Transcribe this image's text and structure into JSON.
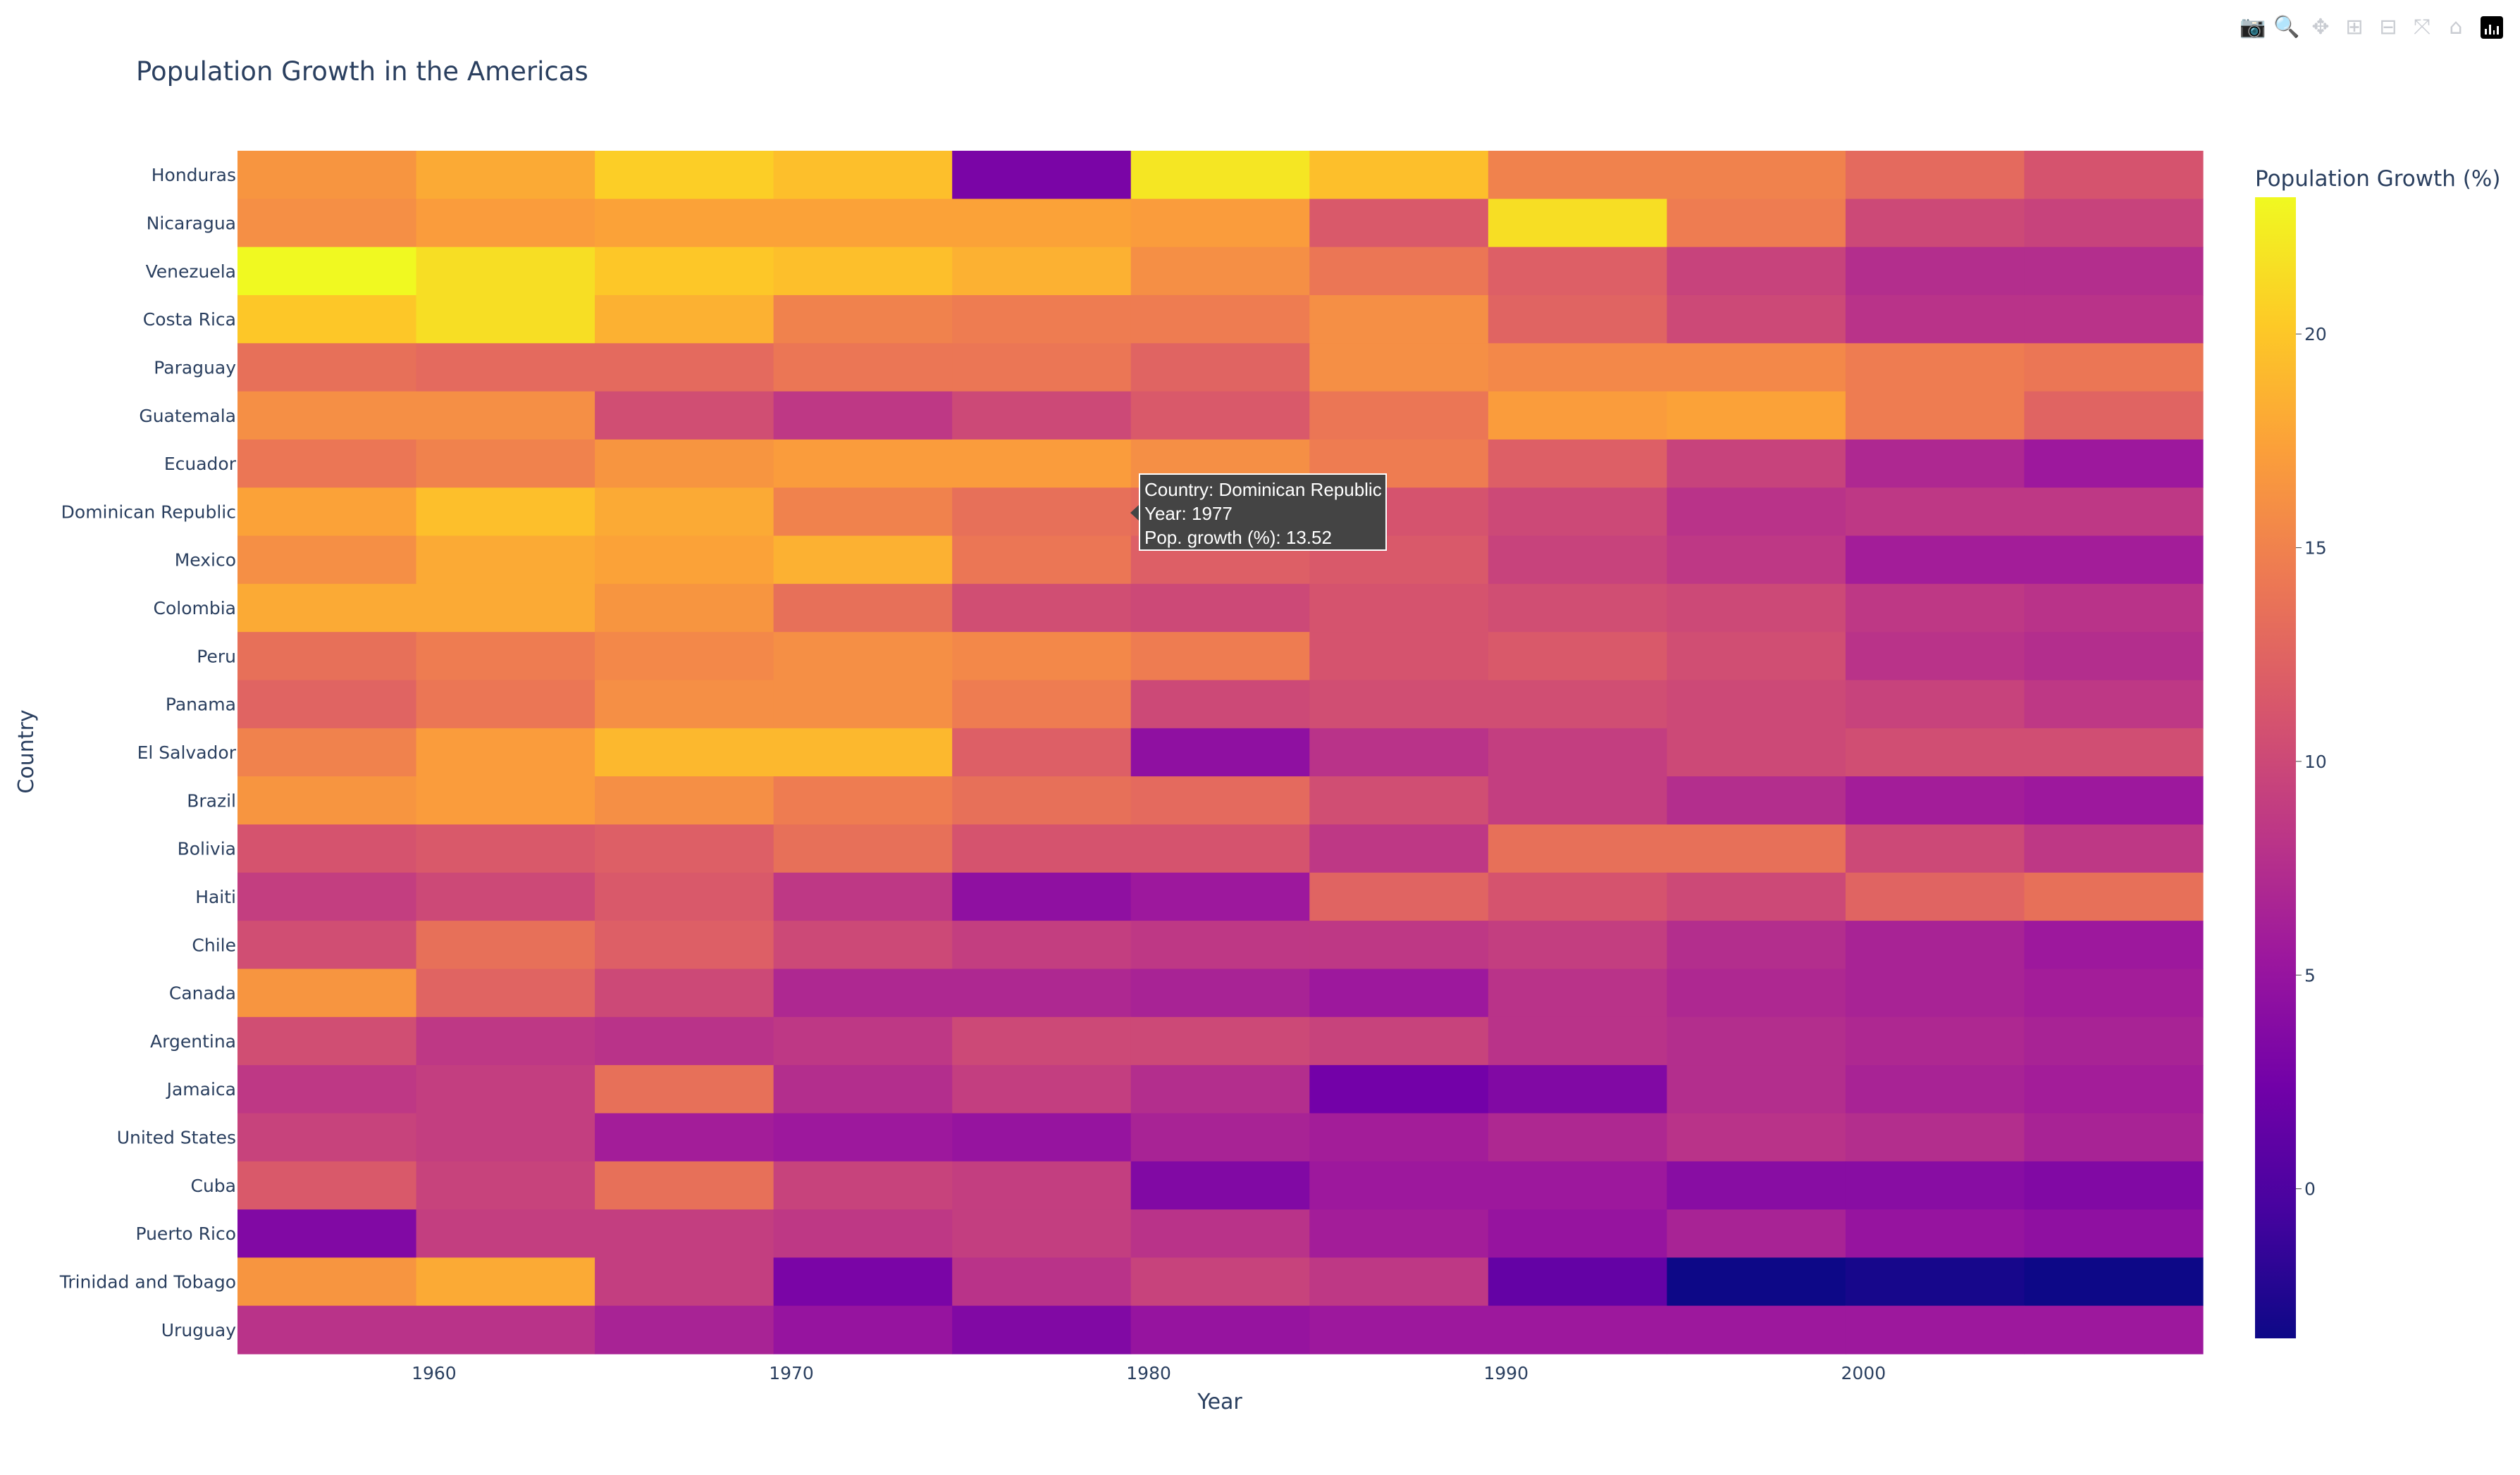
{
  "modebar": {
    "buttons": [
      {
        "name": "camera-icon",
        "glyph": "📷"
      },
      {
        "name": "zoom-icon",
        "glyph": "🔍"
      },
      {
        "name": "pan-icon",
        "glyph": "✥"
      },
      {
        "name": "zoom-in-icon",
        "glyph": "⊞"
      },
      {
        "name": "zoom-out-icon",
        "glyph": "⊟"
      },
      {
        "name": "autoscale-icon",
        "glyph": "⤧"
      },
      {
        "name": "home-icon",
        "glyph": "⌂"
      }
    ],
    "logo": "plotly-logo-icon"
  },
  "tooltip": {
    "country_line": "Country: Dominican Republic",
    "year_line": "Year: 1977",
    "value_line": "Pop. growth (%): 13.52"
  },
  "chart_data": {
    "type": "heatmap",
    "title": "Population Growth in the Americas",
    "xlabel": "Year",
    "ylabel": "Country",
    "colorbar_title": "Population Growth (%)",
    "colorscale": "plasma",
    "zmin": -3.5,
    "zmax": 23.2,
    "x": [
      1957,
      1962,
      1967,
      1972,
      1977,
      1982,
      1987,
      1992,
      1997,
      2002,
      2007
    ],
    "x_ticks": [
      1960,
      1970,
      1980,
      1990,
      2000
    ],
    "colorbar_ticks": [
      0,
      5,
      10,
      15,
      20
    ],
    "y": [
      "Honduras",
      "Nicaragua",
      "Venezuela",
      "Costa Rica",
      "Paraguay",
      "Guatemala",
      "Ecuador",
      "Dominican Republic",
      "Mexico",
      "Colombia",
      "Peru",
      "Panama",
      "El Salvador",
      "Brazil",
      "Bolivia",
      "Haiti",
      "Chile",
      "Canada",
      "Argentina",
      "Jamaica",
      "United States",
      "Cuba",
      "Puerto Rico",
      "Trinidad and Tobago",
      "Uruguay"
    ],
    "z": [
      [
        16.5,
        18,
        20.5,
        19.5,
        3,
        22,
        19.5,
        15,
        15,
        13,
        11
      ],
      [
        16,
        17,
        17.5,
        17.5,
        17.5,
        17,
        11.5,
        21.5,
        14.5,
        10,
        9.5
      ],
      [
        23.2,
        21.5,
        20,
        19.5,
        18.5,
        16,
        14,
        12,
        9.5,
        7.5,
        7.5
      ],
      [
        20,
        21.5,
        18.5,
        15,
        14.5,
        14.5,
        16,
        12.5,
        10,
        8,
        8
      ],
      [
        13.5,
        13,
        13,
        14,
        14,
        12.5,
        16,
        15.5,
        15.5,
        14.5,
        14
      ],
      [
        16,
        16,
        10.5,
        8.5,
        10,
        11.5,
        14,
        17,
        17.5,
        14.5,
        12.5
      ],
      [
        14,
        15,
        16.5,
        17,
        17,
        16,
        14.5,
        12,
        9.5,
        7,
        5.5
      ],
      [
        17.5,
        19.5,
        18,
        15,
        13.52,
        13,
        11,
        10,
        8,
        8.5,
        8.5
      ],
      [
        16,
        18,
        17.5,
        18.5,
        14,
        12,
        11.5,
        9.5,
        8.5,
        6,
        6
      ],
      [
        18,
        18,
        16.5,
        13.5,
        10.5,
        10,
        11,
        10.5,
        10,
        8.5,
        8
      ],
      [
        13.5,
        14.5,
        15.5,
        16,
        15.5,
        14.5,
        11,
        11.5,
        10.5,
        8,
        7.5
      ],
      [
        12.5,
        14,
        16,
        16,
        14.5,
        10,
        10.5,
        10.5,
        10,
        9.5,
        8.5
      ],
      [
        15,
        17,
        19,
        19,
        12,
        4.5,
        8,
        9,
        10,
        10.5,
        10.5
      ],
      [
        16.5,
        17,
        16,
        14.5,
        13.5,
        13,
        10.5,
        9,
        7.5,
        6,
        5.5
      ],
      [
        11,
        11.5,
        12,
        13.5,
        11,
        11,
        8.5,
        13.5,
        13.5,
        10,
        8.5
      ],
      [
        9,
        10,
        11.5,
        8.5,
        4.5,
        5.5,
        12.5,
        11,
        10,
        12.5,
        13.5
      ],
      [
        10.5,
        13.5,
        12,
        10,
        9,
        8.5,
        8.5,
        9,
        7.5,
        6.5,
        5.5
      ],
      [
        16.5,
        12.5,
        10,
        7,
        7,
        6.5,
        5.5,
        8,
        7,
        6.5,
        6
      ],
      [
        10.5,
        8.5,
        8,
        8.5,
        10,
        10,
        9.5,
        8,
        7.5,
        7,
        6.5
      ],
      [
        8.5,
        9,
        13.5,
        7.5,
        9,
        7.5,
        2.5,
        3.5,
        7.5,
        6.5,
        6
      ],
      [
        9.5,
        9,
        6,
        5.5,
        5,
        6.5,
        6,
        7,
        8,
        7.5,
        6.5
      ],
      [
        11.5,
        9.5,
        13.5,
        9.5,
        9,
        3.5,
        5.5,
        5.5,
        4,
        4,
        3.5
      ],
      [
        3.5,
        9,
        9,
        8.5,
        9,
        8,
        6,
        5,
        6.5,
        5,
        4.5
      ],
      [
        16.5,
        18,
        9,
        3,
        8,
        9.5,
        8.5,
        1.5,
        -3.5,
        -3,
        -3.5
      ],
      [
        8,
        8,
        6.5,
        5,
        3.5,
        5,
        5.5,
        5.5,
        5.5,
        5.5,
        5.5
      ]
    ]
  }
}
